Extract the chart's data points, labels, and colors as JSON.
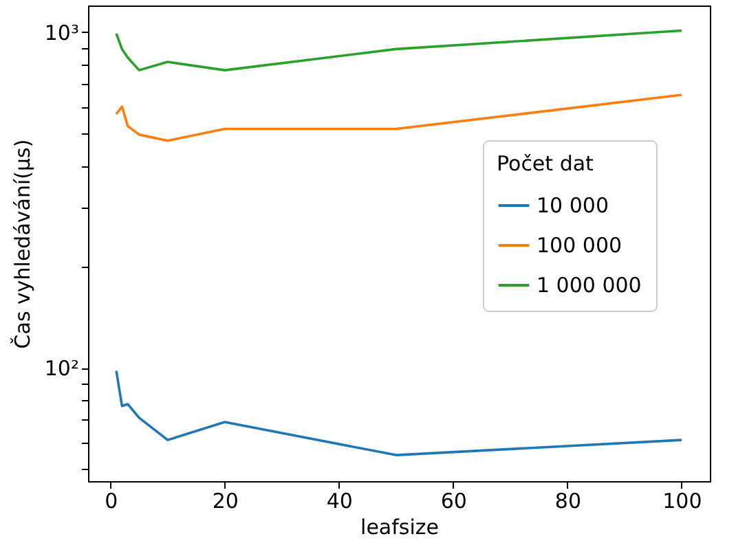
{
  "chart_data": {
    "type": "line",
    "xlabel": "leafsize",
    "ylabel": "Čas vyhledávání(μs)",
    "legend_title": "Počet dat",
    "legend": "right",
    "log": "y",
    "grid": false,
    "x": [
      1,
      2,
      3,
      5,
      10,
      20,
      50,
      100
    ],
    "xlim": [
      -3.95,
      104.95
    ],
    "xticks": [
      0,
      20,
      40,
      60,
      80,
      100
    ],
    "ylim": [
      46,
      1200
    ],
    "yticks": [
      {
        "value": 50,
        "label": null
      },
      {
        "value": 60,
        "label": null
      },
      {
        "value": 70,
        "label": null
      },
      {
        "value": 80,
        "label": null
      },
      {
        "value": 90,
        "label": null
      },
      {
        "value": 100,
        "label": "10²"
      },
      {
        "value": 200,
        "label": null
      },
      {
        "value": 300,
        "label": null
      },
      {
        "value": 400,
        "label": null
      },
      {
        "value": 500,
        "label": null
      },
      {
        "value": 600,
        "label": null
      },
      {
        "value": 700,
        "label": null
      },
      {
        "value": 800,
        "label": null
      },
      {
        "value": 900,
        "label": null
      },
      {
        "value": 1000,
        "label": "10³"
      }
    ],
    "series": [
      {
        "name": "10 000",
        "color": "#1f77b4",
        "values": [
          98,
          77,
          78,
          71,
          61,
          69,
          55,
          61
        ]
      },
      {
        "name": "100 000",
        "color": "#ff7f0e",
        "values": [
          570,
          600,
          525,
          495,
          475,
          515,
          515,
          650
        ]
      },
      {
        "name": "1 000 000",
        "color": "#2ca02c",
        "values": [
          990,
          890,
          840,
          770,
          815,
          770,
          890,
          1010
        ]
      }
    ]
  }
}
